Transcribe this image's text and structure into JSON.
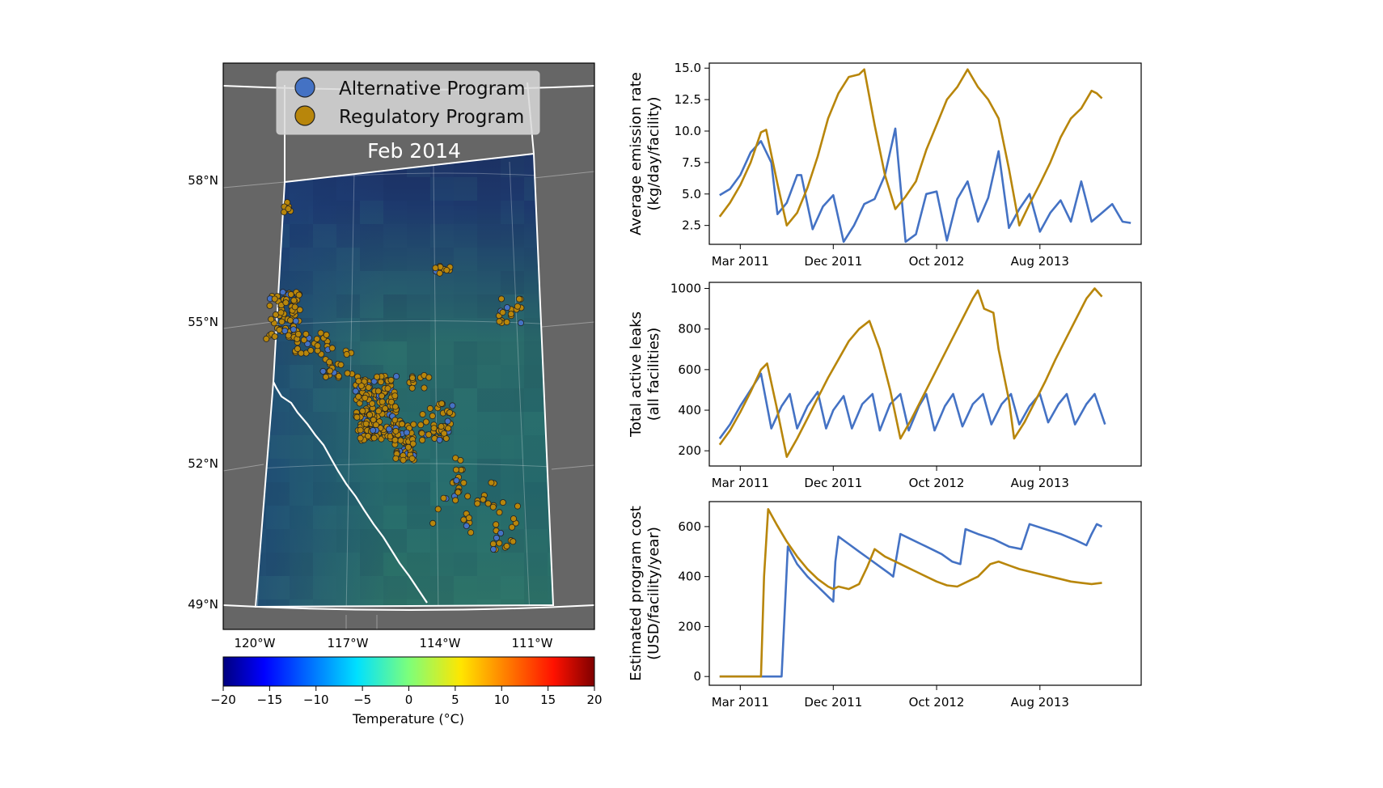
{
  "colors": {
    "alternative": "#4472c4",
    "regulatory": "#b8860b",
    "map_background": "#666666",
    "province_border": "#ffffff"
  },
  "map": {
    "title": "Feb 2014",
    "legend": [
      {
        "label": "Alternative Program",
        "series": "alternative"
      },
      {
        "label": "Regulatory Program",
        "series": "regulatory"
      }
    ],
    "lat_labels": [
      "58°N",
      "55°N",
      "52°N",
      "49°N"
    ],
    "lon_labels": [
      "120°W",
      "117°W",
      "114°W",
      "111°W"
    ],
    "colorbar": {
      "label": "Temperature (°C)",
      "min": -20,
      "max": 20,
      "ticks": [
        "−20",
        "−15",
        "−10",
        "−5",
        "0",
        "5",
        "10",
        "15",
        "20"
      ]
    }
  },
  "chart_data": [
    {
      "type": "line",
      "title": "",
      "xlabel": "",
      "ylabel": "Average emission rate",
      "ylabel2": "(kg/day/facility)",
      "x_ticks": [
        "Mar 2011",
        "Dec 2011",
        "Oct 2012",
        "Aug 2013"
      ],
      "y_ticks": [
        "2.5",
        "5.0",
        "7.5",
        "10.0",
        "12.5",
        "15.0"
      ],
      "ylim": [
        1.0,
        15.4
      ],
      "y_tick_values": [
        2.5,
        5.0,
        7.5,
        10.0,
        12.5,
        15.0
      ],
      "x_tick_months": [
        2,
        11,
        21,
        31
      ],
      "xlim_months": [
        -1,
        40.8
      ],
      "series": [
        {
          "name": "Alternative Program",
          "color": "alternative",
          "points": [
            [
              0,
              4.9
            ],
            [
              1,
              5.4
            ],
            [
              2,
              6.5
            ],
            [
              3,
              8.3
            ],
            [
              4,
              9.2
            ],
            [
              5,
              7.5
            ],
            [
              5.6,
              3.4
            ],
            [
              6.5,
              4.3
            ],
            [
              7.5,
              6.5
            ],
            [
              7.9,
              6.5
            ],
            [
              9,
              2.2
            ],
            [
              10,
              4.0
            ],
            [
              11,
              4.9
            ],
            [
              12,
              1.2
            ],
            [
              13,
              2.5
            ],
            [
              14,
              4.2
            ],
            [
              15,
              4.6
            ],
            [
              16,
              6.5
            ],
            [
              17,
              10.2
            ],
            [
              18,
              1.2
            ],
            [
              19,
              1.8
            ],
            [
              20,
              5.0
            ],
            [
              21,
              5.2
            ],
            [
              22,
              1.3
            ],
            [
              23,
              4.6
            ],
            [
              24,
              6.0
            ],
            [
              25,
              2.8
            ],
            [
              26,
              4.7
            ],
            [
              27,
              8.4
            ],
            [
              28,
              2.3
            ],
            [
              29,
              3.8
            ],
            [
              30,
              5.0
            ],
            [
              31,
              2.0
            ],
            [
              32,
              3.5
            ],
            [
              33,
              4.5
            ],
            [
              34,
              2.8
            ],
            [
              35,
              6.0
            ],
            [
              36,
              2.8
            ],
            [
              37,
              3.5
            ],
            [
              38,
              4.2
            ],
            [
              39,
              2.8
            ],
            [
              39.8,
              2.7
            ]
          ]
        },
        {
          "name": "Regulatory Program",
          "color": "regulatory",
          "points": [
            [
              0,
              3.2
            ],
            [
              1,
              4.3
            ],
            [
              2,
              5.7
            ],
            [
              3,
              7.5
            ],
            [
              4,
              9.9
            ],
            [
              4.5,
              10.1
            ],
            [
              5.6,
              5.8
            ],
            [
              6.5,
              2.5
            ],
            [
              7.5,
              3.5
            ],
            [
              8.5,
              5.5
            ],
            [
              9.5,
              8.0
            ],
            [
              10.5,
              11.0
            ],
            [
              11.5,
              13.0
            ],
            [
              12.5,
              14.3
            ],
            [
              13.5,
              14.5
            ],
            [
              14,
              14.9
            ],
            [
              15,
              10.5
            ],
            [
              16,
              6.5
            ],
            [
              17,
              3.8
            ],
            [
              18,
              4.8
            ],
            [
              19,
              6.0
            ],
            [
              20,
              8.5
            ],
            [
              21,
              10.5
            ],
            [
              22,
              12.5
            ],
            [
              23,
              13.5
            ],
            [
              24,
              14.9
            ],
            [
              25,
              13.5
            ],
            [
              26,
              12.5
            ],
            [
              27,
              11.0
            ],
            [
              28,
              7.0
            ],
            [
              29,
              2.5
            ],
            [
              30,
              4.2
            ],
            [
              31,
              5.8
            ],
            [
              32,
              7.5
            ],
            [
              33,
              9.5
            ],
            [
              34,
              11.0
            ],
            [
              35,
              11.8
            ],
            [
              36,
              13.2
            ],
            [
              36.5,
              13.0
            ],
            [
              37,
              12.6
            ]
          ]
        }
      ]
    },
    {
      "type": "line",
      "title": "",
      "xlabel": "",
      "ylabel": "Total active leaks",
      "ylabel2": "(all facilities)",
      "x_ticks": [
        "Mar 2011",
        "Dec 2011",
        "Oct 2012",
        "Aug 2013"
      ],
      "y_ticks": [
        "200",
        "400",
        "600",
        "800",
        "1000"
      ],
      "ylim": [
        125,
        1030
      ],
      "y_tick_values": [
        200,
        400,
        600,
        800,
        1000
      ],
      "x_tick_months": [
        2,
        11,
        21,
        31
      ],
      "xlim_months": [
        -1,
        40.8
      ],
      "series": [
        {
          "name": "Alternative Program",
          "color": "alternative",
          "points": [
            [
              0,
              260
            ],
            [
              1,
              330
            ],
            [
              2,
              420
            ],
            [
              3,
              500
            ],
            [
              4,
              580
            ],
            [
              5,
              310
            ],
            [
              6,
              420
            ],
            [
              6.8,
              480
            ],
            [
              7.5,
              310
            ],
            [
              8.5,
              420
            ],
            [
              9.5,
              490
            ],
            [
              10.3,
              310
            ],
            [
              11,
              400
            ],
            [
              12,
              470
            ],
            [
              12.8,
              310
            ],
            [
              13.8,
              430
            ],
            [
              14.8,
              480
            ],
            [
              15.5,
              300
            ],
            [
              16.5,
              430
            ],
            [
              17.5,
              480
            ],
            [
              18.3,
              300
            ],
            [
              19.3,
              420
            ],
            [
              20,
              480
            ],
            [
              20.8,
              300
            ],
            [
              21.8,
              420
            ],
            [
              22.6,
              480
            ],
            [
              23.5,
              320
            ],
            [
              24.5,
              430
            ],
            [
              25.5,
              480
            ],
            [
              26.3,
              330
            ],
            [
              27.3,
              430
            ],
            [
              28.2,
              480
            ],
            [
              29,
              330
            ],
            [
              30,
              420
            ],
            [
              31,
              480
            ],
            [
              31.8,
              340
            ],
            [
              32.8,
              430
            ],
            [
              33.6,
              480
            ],
            [
              34.4,
              330
            ],
            [
              35.5,
              430
            ],
            [
              36.3,
              480
            ],
            [
              37.3,
              330
            ]
          ]
        },
        {
          "name": "Regulatory Program",
          "color": "regulatory",
          "points": [
            [
              0,
              230
            ],
            [
              1,
              300
            ],
            [
              2,
              390
            ],
            [
              3,
              490
            ],
            [
              4,
              600
            ],
            [
              4.6,
              630
            ],
            [
              5.5,
              420
            ],
            [
              6.5,
              170
            ],
            [
              7.5,
              260
            ],
            [
              8.5,
              360
            ],
            [
              9.5,
              460
            ],
            [
              10.5,
              560
            ],
            [
              11.5,
              650
            ],
            [
              12.5,
              740
            ],
            [
              13.5,
              800
            ],
            [
              14.5,
              840
            ],
            [
              15.5,
              700
            ],
            [
              16.5,
              500
            ],
            [
              17.5,
              260
            ],
            [
              18.5,
              350
            ],
            [
              19.5,
              450
            ],
            [
              20.5,
              550
            ],
            [
              21.5,
              650
            ],
            [
              22.5,
              750
            ],
            [
              23.5,
              850
            ],
            [
              24.5,
              950
            ],
            [
              25,
              990
            ],
            [
              25.6,
              900
            ],
            [
              26.5,
              880
            ],
            [
              27,
              700
            ],
            [
              28,
              450
            ],
            [
              28.5,
              260
            ],
            [
              29.5,
              340
            ],
            [
              30.5,
              440
            ],
            [
              31.5,
              540
            ],
            [
              32.5,
              650
            ],
            [
              33.5,
              750
            ],
            [
              34.5,
              850
            ],
            [
              35.5,
              950
            ],
            [
              36.3,
              1000
            ],
            [
              37,
              960
            ]
          ]
        }
      ]
    },
    {
      "type": "line",
      "title": "",
      "xlabel": "",
      "ylabel": "Estimated program cost",
      "ylabel2": "(USD/facility/year)",
      "x_ticks": [
        "Mar 2011",
        "Dec 2011",
        "Oct 2012",
        "Aug 2013"
      ],
      "y_ticks": [
        "0",
        "200",
        "400",
        "600"
      ],
      "ylim": [
        -35,
        700
      ],
      "y_tick_values": [
        0,
        200,
        400,
        600
      ],
      "x_tick_months": [
        2,
        11,
        21,
        31
      ],
      "xlim_months": [
        -1,
        40.8
      ],
      "series": [
        {
          "name": "Alternative Program",
          "color": "alternative",
          "points": [
            [
              0,
              0
            ],
            [
              6,
              0
            ],
            [
              6.6,
              520
            ],
            [
              7.5,
              450
            ],
            [
              8.5,
              400
            ],
            [
              9.5,
              360
            ],
            [
              10.5,
              320
            ],
            [
              11,
              300
            ],
            [
              11.2,
              460
            ],
            [
              11.5,
              560
            ],
            [
              12.5,
              530
            ],
            [
              13.5,
              500
            ],
            [
              14.5,
              470
            ],
            [
              15.5,
              440
            ],
            [
              16.5,
              410
            ],
            [
              16.8,
              400
            ],
            [
              17.5,
              570
            ],
            [
              18.5,
              550
            ],
            [
              19.5,
              530
            ],
            [
              20.5,
              510
            ],
            [
              21.5,
              490
            ],
            [
              22.5,
              460
            ],
            [
              23.3,
              450
            ],
            [
              23.8,
              590
            ],
            [
              25,
              570
            ],
            [
              26.5,
              550
            ],
            [
              28,
              520
            ],
            [
              29.2,
              510
            ],
            [
              30,
              610
            ],
            [
              31.5,
              590
            ],
            [
              33,
              570
            ],
            [
              34.5,
              545
            ],
            [
              35.5,
              525
            ],
            [
              36,
              570
            ],
            [
              36.5,
              610
            ],
            [
              37,
              600
            ]
          ]
        },
        {
          "name": "Regulatory Program",
          "color": "regulatory",
          "points": [
            [
              0,
              0
            ],
            [
              4,
              0
            ],
            [
              4.3,
              400
            ],
            [
              4.7,
              670
            ],
            [
              5.5,
              610
            ],
            [
              6.5,
              540
            ],
            [
              7.5,
              480
            ],
            [
              8.5,
              430
            ],
            [
              9.5,
              390
            ],
            [
              10.5,
              360
            ],
            [
              11,
              350
            ],
            [
              11.5,
              360
            ],
            [
              12.5,
              350
            ],
            [
              13.5,
              370
            ],
            [
              14.3,
              440
            ],
            [
              15,
              510
            ],
            [
              16,
              480
            ],
            [
              17,
              460
            ],
            [
              18,
              440
            ],
            [
              19,
              420
            ],
            [
              20,
              400
            ],
            [
              21,
              380
            ],
            [
              22,
              365
            ],
            [
              23,
              360
            ],
            [
              24,
              380
            ],
            [
              25,
              400
            ],
            [
              26.2,
              450
            ],
            [
              27,
              460
            ],
            [
              28,
              445
            ],
            [
              29,
              430
            ],
            [
              30,
              420
            ],
            [
              31,
              410
            ],
            [
              32,
              400
            ],
            [
              33,
              390
            ],
            [
              34,
              380
            ],
            [
              35,
              375
            ],
            [
              36,
              370
            ],
            [
              37,
              375
            ]
          ]
        }
      ]
    }
  ]
}
